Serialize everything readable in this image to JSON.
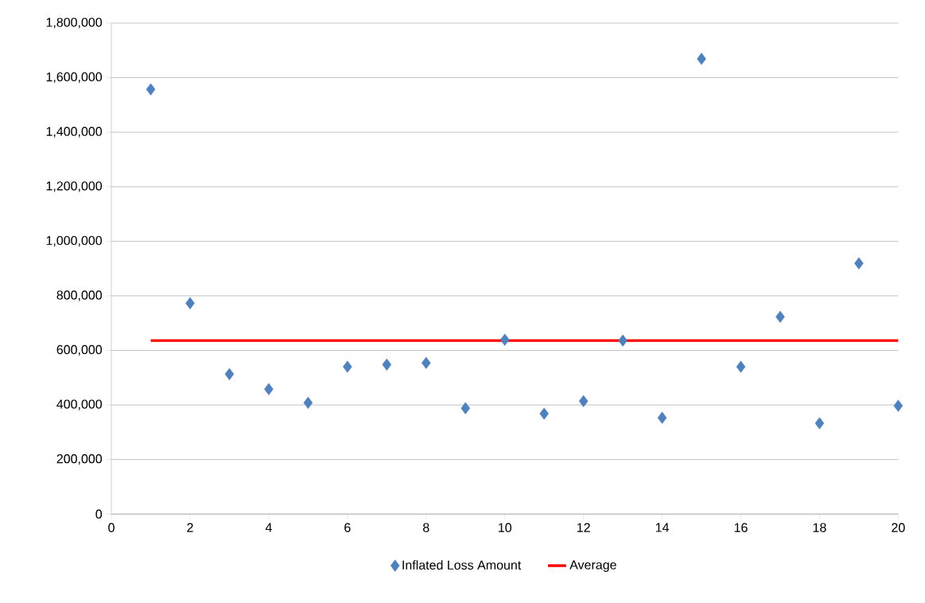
{
  "chart_data": {
    "type": "scatter",
    "series": [
      {
        "name": "Inflated Loss Amount",
        "color": "#4f81bd",
        "marker": "diamond",
        "x": [
          1,
          2,
          3,
          4,
          5,
          6,
          7,
          8,
          9,
          10,
          11,
          12,
          13,
          14,
          15,
          16,
          17,
          18,
          19,
          20
        ],
        "values": [
          1557000,
          773000,
          513000,
          458000,
          408000,
          540000,
          548000,
          554000,
          388000,
          639000,
          368000,
          414000,
          636000,
          353000,
          1669000,
          540000,
          723000,
          333000,
          919000,
          397000
        ]
      },
      {
        "name": "Average",
        "type": "line",
        "color": "#ff0000",
        "marker": "none",
        "line_style": "solid",
        "x": [
          1,
          20
        ],
        "values": [
          636000,
          636000
        ]
      }
    ],
    "xlim": [
      0,
      20
    ],
    "xticks": [
      0,
      2,
      4,
      6,
      8,
      10,
      12,
      14,
      16,
      18,
      20
    ],
    "ylim": [
      0,
      1800000
    ],
    "yticks": [
      0,
      {
        "value": 200000,
        "label": "200,000"
      },
      {
        "value": 400000,
        "label": "400,000"
      },
      {
        "value": 600000,
        "label": "600,000"
      },
      {
        "value": 800000,
        "label": "800,000"
      },
      {
        "value": 1000000,
        "label": "1,000,000"
      },
      {
        "value": 1200000,
        "label": "1,200,000"
      },
      {
        "value": 1400000,
        "label": "1,400,000"
      },
      {
        "value": 1600000,
        "label": "1,600,000"
      },
      {
        "value": 1800000,
        "label": "1,800,000"
      }
    ],
    "grid": "y",
    "legend": "bottom"
  }
}
